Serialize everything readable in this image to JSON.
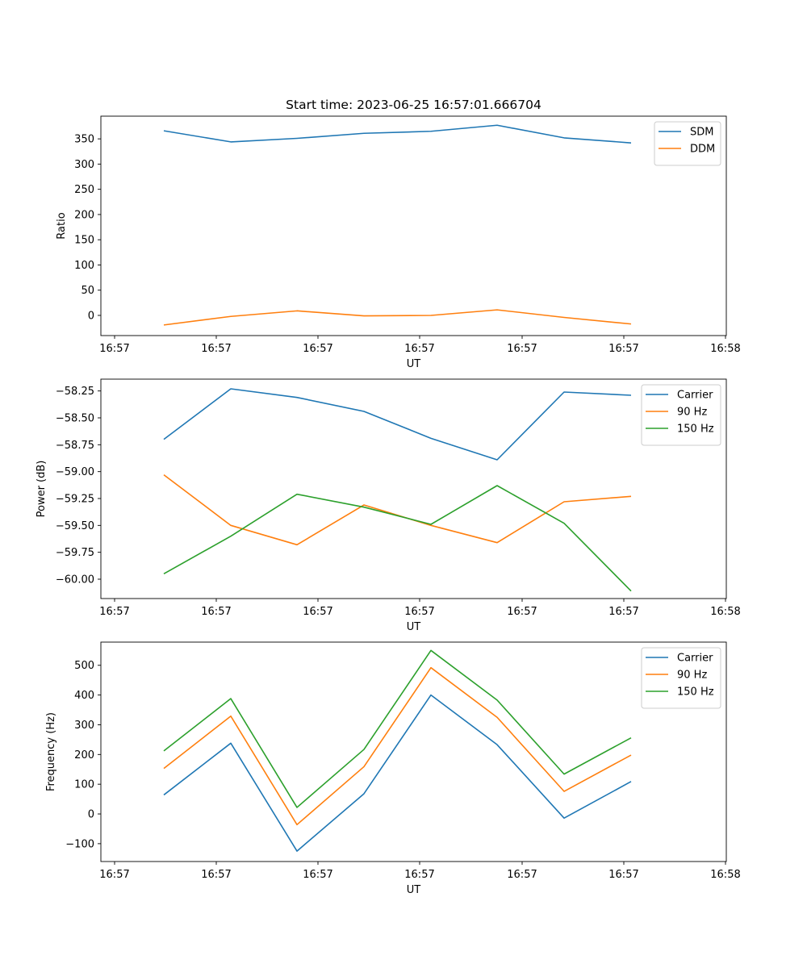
{
  "chart_data": [
    {
      "type": "line",
      "title": "Start time: 2023-06-25 16:57:01.666704",
      "xlabel": "UT",
      "ylabel": "Ratio",
      "x_tick_labels": [
        "16:57",
        "16:57",
        "16:57",
        "16:57",
        "16:57",
        "16:57",
        "16:58"
      ],
      "y_ticks": [
        0,
        50,
        100,
        150,
        200,
        250,
        300,
        350
      ],
      "y_tick_labels": [
        "0",
        "50",
        "100",
        "150",
        "200",
        "250",
        "300",
        "350"
      ],
      "ylim": [
        -40,
        395
      ],
      "legend_position": "top-right",
      "grid": false,
      "series": [
        {
          "name": "SDM",
          "color": "#1f77b4",
          "values": [
            366,
            344,
            351,
            361,
            365,
            377,
            352,
            342
          ]
        },
        {
          "name": "DDM",
          "color": "#ff7f0e",
          "values": [
            -19,
            -2,
            9,
            -1,
            0,
            11,
            -4,
            -17
          ]
        }
      ]
    },
    {
      "type": "line",
      "title": "",
      "xlabel": "UT",
      "ylabel": "Power (dB)",
      "x_tick_labels": [
        "16:57",
        "16:57",
        "16:57",
        "16:57",
        "16:57",
        "16:57",
        "16:58"
      ],
      "y_ticks": [
        -60.0,
        -59.75,
        -59.5,
        -59.25,
        -59.0,
        -58.75,
        -58.5,
        -58.25
      ],
      "y_tick_labels": [
        "−60.00",
        "−59.75",
        "−59.50",
        "−59.25",
        "−59.00",
        "−58.75",
        "−58.50",
        "−58.25"
      ],
      "ylim": [
        -60.18,
        -58.14
      ],
      "legend_position": "top-right",
      "grid": false,
      "series": [
        {
          "name": "Carrier",
          "color": "#1f77b4",
          "values": [
            -58.7,
            -58.23,
            -58.31,
            -58.44,
            -58.69,
            -58.89,
            -58.26,
            -58.29
          ]
        },
        {
          "name": "90 Hz",
          "color": "#ff7f0e",
          "values": [
            -59.03,
            -59.5,
            -59.68,
            -59.31,
            -59.5,
            -59.66,
            -59.28,
            -59.23
          ]
        },
        {
          "name": "150 Hz",
          "color": "#2ca02c",
          "values": [
            -59.95,
            -59.6,
            -59.21,
            -59.33,
            -59.49,
            -59.13,
            -59.48,
            -60.11
          ]
        }
      ]
    },
    {
      "type": "line",
      "title": "",
      "xlabel": "UT",
      "ylabel": "Frequency (Hz)",
      "x_tick_labels": [
        "16:57",
        "16:57",
        "16:57",
        "16:57",
        "16:57",
        "16:57",
        "16:58"
      ],
      "y_ticks": [
        -100,
        0,
        100,
        200,
        300,
        400,
        500
      ],
      "y_tick_labels": [
        "−100",
        "0",
        "100",
        "200",
        "300",
        "400",
        "500"
      ],
      "ylim": [
        -160,
        578
      ],
      "legend_position": "top-right",
      "grid": false,
      "series": [
        {
          "name": "Carrier",
          "color": "#1f77b4",
          "values": [
            64,
            238,
            -125,
            68,
            400,
            233,
            -14,
            109
          ]
        },
        {
          "name": "90 Hz",
          "color": "#ff7f0e",
          "values": [
            153,
            329,
            -36,
            159,
            492,
            325,
            76,
            198
          ]
        },
        {
          "name": "150 Hz",
          "color": "#2ca02c",
          "values": [
            212,
            388,
            22,
            217,
            550,
            383,
            134,
            256
          ]
        }
      ]
    }
  ]
}
